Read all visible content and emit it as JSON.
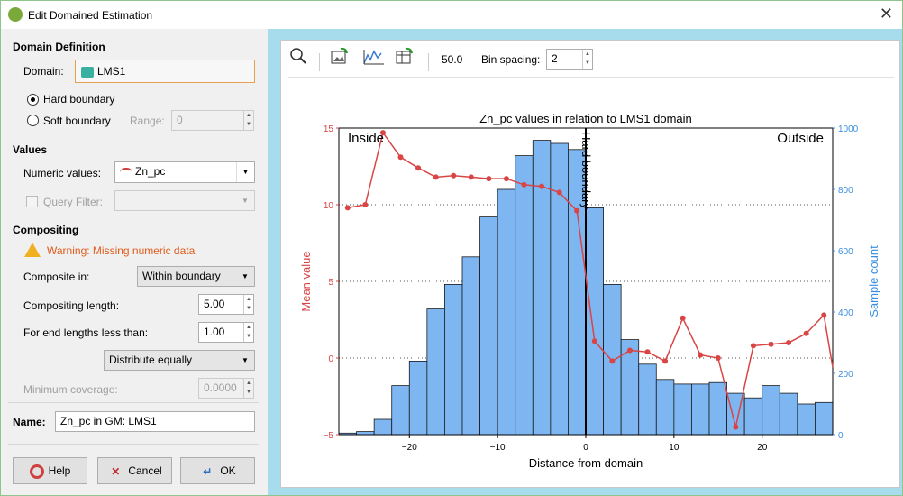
{
  "window": {
    "title": "Edit Domained Estimation",
    "close_glyph": "✕"
  },
  "domain_definition": {
    "heading": "Domain Definition",
    "domain_label": "Domain:",
    "domain_value": "LMS1",
    "hard_boundary": "Hard boundary",
    "soft_boundary": "Soft boundary",
    "range_label": "Range:",
    "range_value": "0",
    "selected": "Hard boundary"
  },
  "values": {
    "heading": "Values",
    "numeric_label": "Numeric values:",
    "numeric_value": "Zn_pc",
    "query_filter_label": "Query Filter:"
  },
  "compositing": {
    "heading": "Compositing",
    "warning": "Warning: Missing numeric data",
    "composite_in_label": "Composite in:",
    "composite_in_value": "Within boundary",
    "length_label": "Compositing length:",
    "length_value": "5.00",
    "end_label": "For end lengths less than:",
    "end_value": "1.00",
    "distribute_value": "Distribute equally",
    "coverage_label": "Minimum coverage:",
    "coverage_value": "0.0000"
  },
  "name": {
    "label": "Name:",
    "value": "Zn_pc in GM: LMS1"
  },
  "buttons": {
    "help": "Help",
    "cancel": "Cancel",
    "ok": "OK"
  },
  "toolbar": {
    "zoom_value": "50.0",
    "bin_label": "Bin spacing:",
    "bin_value": "2"
  },
  "colors": {
    "line": "#d94444",
    "bars": "#7eb6f2",
    "right_axis": "#3a8ee0",
    "boundary_panel": "#a6dcec"
  },
  "chart_data": {
    "type": "bar+line",
    "title": "Zn_pc values in relation to LMS1 domain",
    "xlabel": "Distance from domain",
    "ylabel_left": "Mean value",
    "ylabel_right": "Sample count",
    "xlim": [
      -28,
      28
    ],
    "ylim_left": [
      -5,
      15
    ],
    "ylim_right": [
      0,
      1000
    ],
    "xticks": [
      -20,
      -10,
      0,
      10,
      20
    ],
    "yticks_left": [
      -5,
      0,
      5,
      10,
      15
    ],
    "yticks_right": [
      0,
      200,
      400,
      600,
      800,
      1000
    ],
    "annotations": {
      "inside": "Inside",
      "outside": "Outside",
      "boundary": "Hard boundary"
    },
    "bin_width": 2,
    "bars": {
      "x": [
        -27,
        -25,
        -23,
        -21,
        -19,
        -17,
        -15,
        -13,
        -11,
        -9,
        -7,
        -5,
        -3,
        -1,
        1,
        3,
        5,
        7,
        9,
        11,
        13,
        15,
        17,
        19,
        21,
        23,
        25,
        27
      ],
      "counts": [
        5,
        10,
        50,
        160,
        240,
        410,
        490,
        580,
        710,
        800,
        910,
        960,
        950,
        930,
        740,
        490,
        310,
        230,
        180,
        165,
        165,
        170,
        135,
        120,
        160,
        135,
        100,
        105
      ]
    },
    "line": {
      "x": [
        -27,
        -25,
        -23,
        -21,
        -19,
        -17,
        -15,
        -13,
        -11,
        -9,
        -7,
        -5,
        -3,
        -1,
        1,
        3,
        5,
        7,
        9,
        11,
        13,
        15,
        17,
        19,
        21,
        23,
        25,
        27
      ],
      "mean": [
        9.8,
        10.0,
        14.7,
        13.1,
        12.4,
        11.8,
        11.9,
        11.8,
        11.7,
        11.7,
        11.3,
        11.2,
        10.8,
        9.6,
        1.1,
        -0.2,
        0.5,
        0.4,
        -0.2,
        2.6,
        0.2,
        0.0,
        -4.5,
        0.8,
        0.9,
        1.0,
        1.6,
        2.8
      ],
      "last_point": [
        28,
        -0.6
      ]
    }
  }
}
